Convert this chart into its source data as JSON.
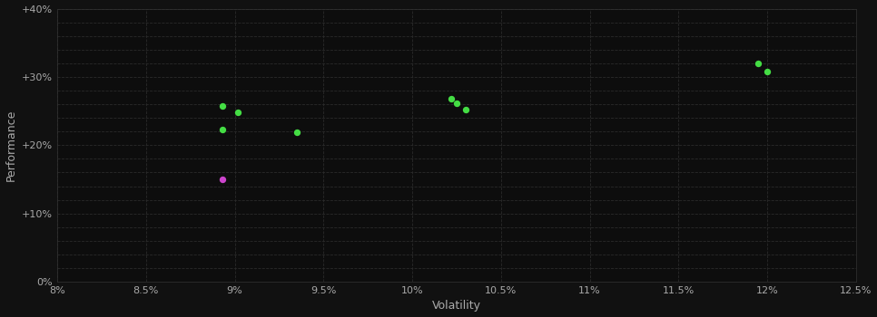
{
  "background_color": "#111111",
  "plot_bg_color": "#0d0d0d",
  "grid_color": "#2a2a2a",
  "grid_style": "--",
  "text_color": "#aaaaaa",
  "xlabel": "Volatility",
  "ylabel": "Performance",
  "xlim": [
    0.08,
    0.125
  ],
  "ylim": [
    0.0,
    0.4
  ],
  "xticks": [
    0.08,
    0.085,
    0.09,
    0.095,
    0.1,
    0.105,
    0.11,
    0.115,
    0.12,
    0.125
  ],
  "yticks": [
    0.0,
    0.1,
    0.2,
    0.3,
    0.4
  ],
  "minor_yticks": [
    0.02,
    0.04,
    0.06,
    0.08,
    0.12,
    0.14,
    0.16,
    0.18,
    0.22,
    0.24,
    0.26,
    0.28,
    0.32,
    0.34,
    0.36,
    0.38
  ],
  "green_points": [
    [
      0.0893,
      0.258
    ],
    [
      0.0902,
      0.248
    ],
    [
      0.0893,
      0.223
    ],
    [
      0.0935,
      0.219
    ],
    [
      0.1022,
      0.268
    ],
    [
      0.1025,
      0.261
    ],
    [
      0.103,
      0.252
    ],
    [
      0.1195,
      0.32
    ],
    [
      0.12,
      0.308
    ]
  ],
  "magenta_points": [
    [
      0.0893,
      0.15
    ]
  ],
  "green_color": "#44dd44",
  "magenta_color": "#cc44cc",
  "marker_size": 28
}
